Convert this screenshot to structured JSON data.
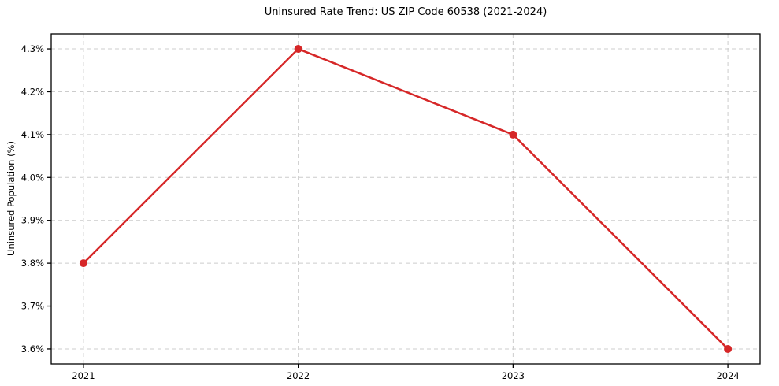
{
  "page": {
    "background_color": "#ffffff"
  },
  "chart_data": {
    "type": "line",
    "title": "Uninsured Rate Trend: US ZIP Code 60538 (2021-2024)",
    "xlabel": "",
    "ylabel": "Uninsured Population (%)",
    "x": [
      2021,
      2022,
      2023,
      2024
    ],
    "categories": [
      "2021",
      "2022",
      "2023",
      "2024"
    ],
    "series": [
      {
        "name": "Uninsured Population (%)",
        "values": [
          3.8,
          4.3,
          4.1,
          3.6
        ]
      }
    ],
    "xlim": [
      2020.85,
      2024.15
    ],
    "ylim": [
      3.565,
      4.335
    ],
    "xticks": {
      "values": [
        2021,
        2022,
        2023,
        2024
      ],
      "labels": [
        "2021",
        "2022",
        "2023",
        "2024"
      ]
    },
    "yticks": {
      "values": [
        3.6,
        3.7,
        3.8,
        3.9,
        4.0,
        4.1,
        4.2,
        4.3
      ],
      "labels": [
        "3.6%",
        "3.7%",
        "3.8%",
        "3.9%",
        "4.0%",
        "4.1%",
        "4.2%",
        "4.3%"
      ]
    },
    "grid": {
      "visible": true,
      "style": "dashed"
    },
    "legend": {
      "visible": false,
      "position": "none"
    },
    "style": {
      "line_color": "#d62728",
      "line_width": 2.5,
      "marker": "circle",
      "marker_radius": 5,
      "grid_color": "#cccccc",
      "spine_color": "#000000",
      "text_color": "#000000",
      "background_color": "#ffffff"
    }
  }
}
